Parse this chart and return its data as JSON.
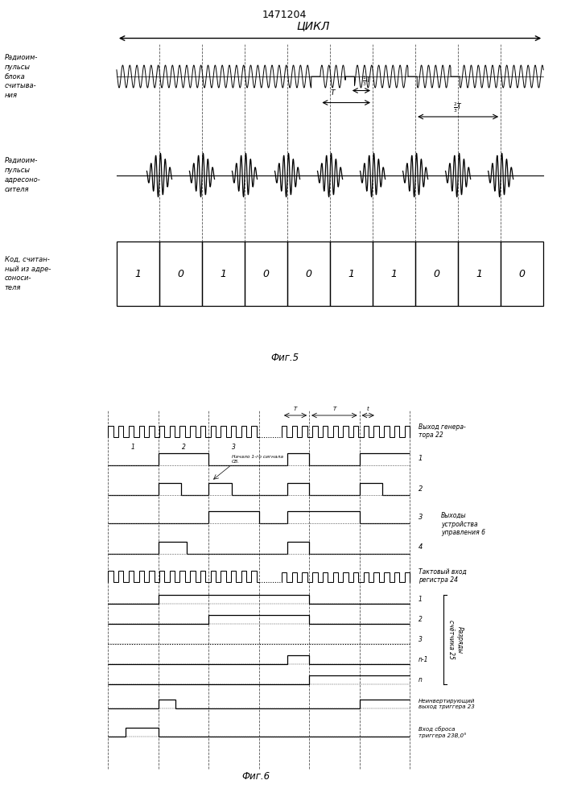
{
  "patent_number": "1471204",
  "fig5_caption": "Фиг.5",
  "fig6_caption": "Фиг.6",
  "cycle_label": "ЦИКЛ",
  "label_radio_block": "Радиоим-\nпульсы\nблока\nсчитыва-\nния",
  "label_radio_addr": "Радиоим-\nпульсы\nадресоно-\nсителя",
  "label_code": "Код, считан-\nный из адре-\nсоноси-\nтеля",
  "code_values": [
    "1",
    "0",
    "1",
    "0",
    "0",
    "1",
    "1",
    "0",
    "1",
    "0"
  ],
  "label_gen22": "Выход генера-\nтора 22",
  "label_ctrl6": "Выходы\nустройства\nуправления 6",
  "label_reg24": "Тактовый вход\nрегистра 24",
  "label_cnt25": "Разряды\nсчётчика 25",
  "label_trig23": "Неинвертирующий\nвыход триггера 23",
  "label_reset": "Вход сброса\nтриггера 23В,0°",
  "label_start": "Начало 1-го сигнала\nСВ.",
  "bg_color": "#ffffff",
  "line_color": "#000000",
  "dashed_color": "#555555"
}
